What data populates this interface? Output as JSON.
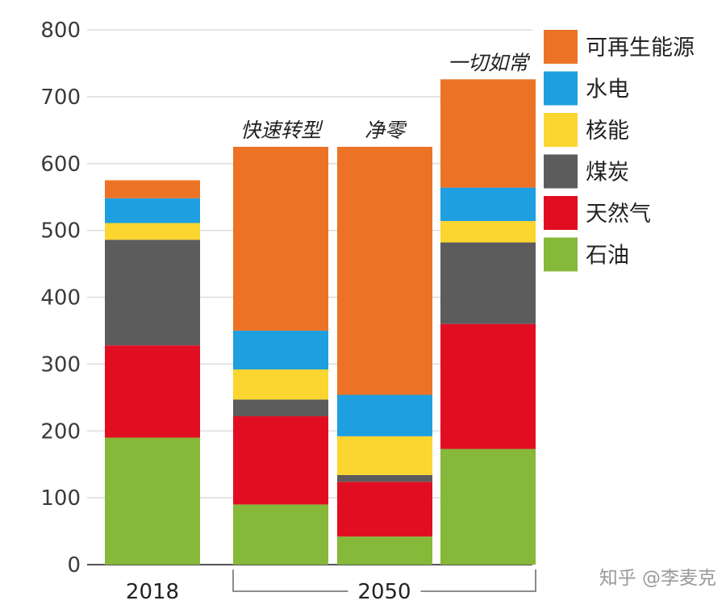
{
  "chart_data": {
    "type": "bar",
    "stacked": true,
    "bars": [
      {
        "x_label": "2018",
        "annotation": ""
      },
      {
        "x_label": "",
        "annotation": "快速转型"
      },
      {
        "x_label": "",
        "annotation": "净零"
      },
      {
        "x_label": "",
        "annotation": "一切如常"
      }
    ],
    "group_labels": [
      {
        "label": "2050",
        "bar_indices": [
          1,
          2,
          3
        ]
      }
    ],
    "series": [
      {
        "name": "石油",
        "color": "#86b83a",
        "values": [
          190,
          90,
          42,
          173
        ]
      },
      {
        "name": "天然气",
        "color": "#e10e22",
        "values": [
          138,
          132,
          82,
          187
        ]
      },
      {
        "name": "煤炭",
        "color": "#5c5c5c",
        "values": [
          158,
          25,
          10,
          122
        ]
      },
      {
        "name": "核能",
        "color": "#fbd530",
        "values": [
          25,
          45,
          58,
          32
        ]
      },
      {
        "name": "水电",
        "color": "#1e9fe0",
        "values": [
          37,
          58,
          62,
          50
        ]
      },
      {
        "name": "可再生能源",
        "color": "#ec7325",
        "values": [
          27,
          275,
          371,
          162
        ]
      }
    ],
    "y_ticks": [
      0,
      100,
      200,
      300,
      400,
      500,
      600,
      700,
      800
    ],
    "ylim": [
      0,
      800
    ],
    "grid": true,
    "legend_position": "right",
    "legend_order": [
      "可再生能源",
      "水电",
      "核能",
      "煤炭",
      "天然气",
      "石油"
    ]
  },
  "watermark": "知乎 @李麦克"
}
